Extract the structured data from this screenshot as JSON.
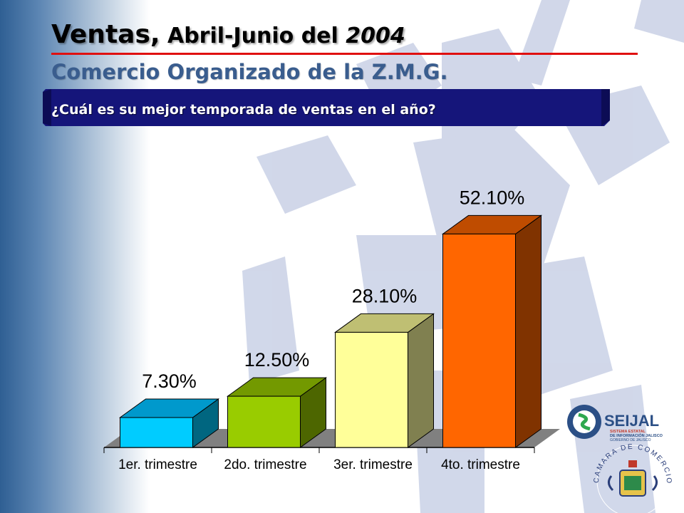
{
  "header": {
    "title_main": "Ventas,",
    "title_rest": " Abril-Junio del ",
    "title_year": "2004",
    "subtitle": "Comercio Organizado de la Z.M.G.",
    "question": "¿Cuál es su mejor temporada de ventas en el año?"
  },
  "logos": {
    "seijal": "SEIJAL",
    "seijal_sub1": "SISTEMA ESTATAL",
    "seijal_sub2": "DE INFORMACIÓN JALISCO",
    "seijal_sub3": "GOBIERNO DE JALISCO",
    "camara": "CAMARA DE COMERCIO DE GUADALAJARA"
  },
  "chart_data": {
    "type": "bar",
    "categories": [
      "1er. trimestre",
      "2do. trimestre",
      "3er. trimestre",
      "4to. trimestre"
    ],
    "values": [
      7.3,
      12.5,
      28.1,
      52.1
    ],
    "data_labels": [
      "7.30%",
      "12.50%",
      "28.10%",
      "52.10%"
    ],
    "ylim": [
      0,
      60
    ],
    "grid": false,
    "colors": [
      {
        "front": "#00ccff",
        "side": "#006680",
        "top": "#0099cc"
      },
      {
        "front": "#99cc00",
        "side": "#4d6600",
        "top": "#739900"
      },
      {
        "front": "#ffff99",
        "side": "#808050",
        "top": "#bfbf73"
      },
      {
        "front": "#ff6600",
        "side": "#803300",
        "top": "#bf4c00"
      }
    ]
  }
}
